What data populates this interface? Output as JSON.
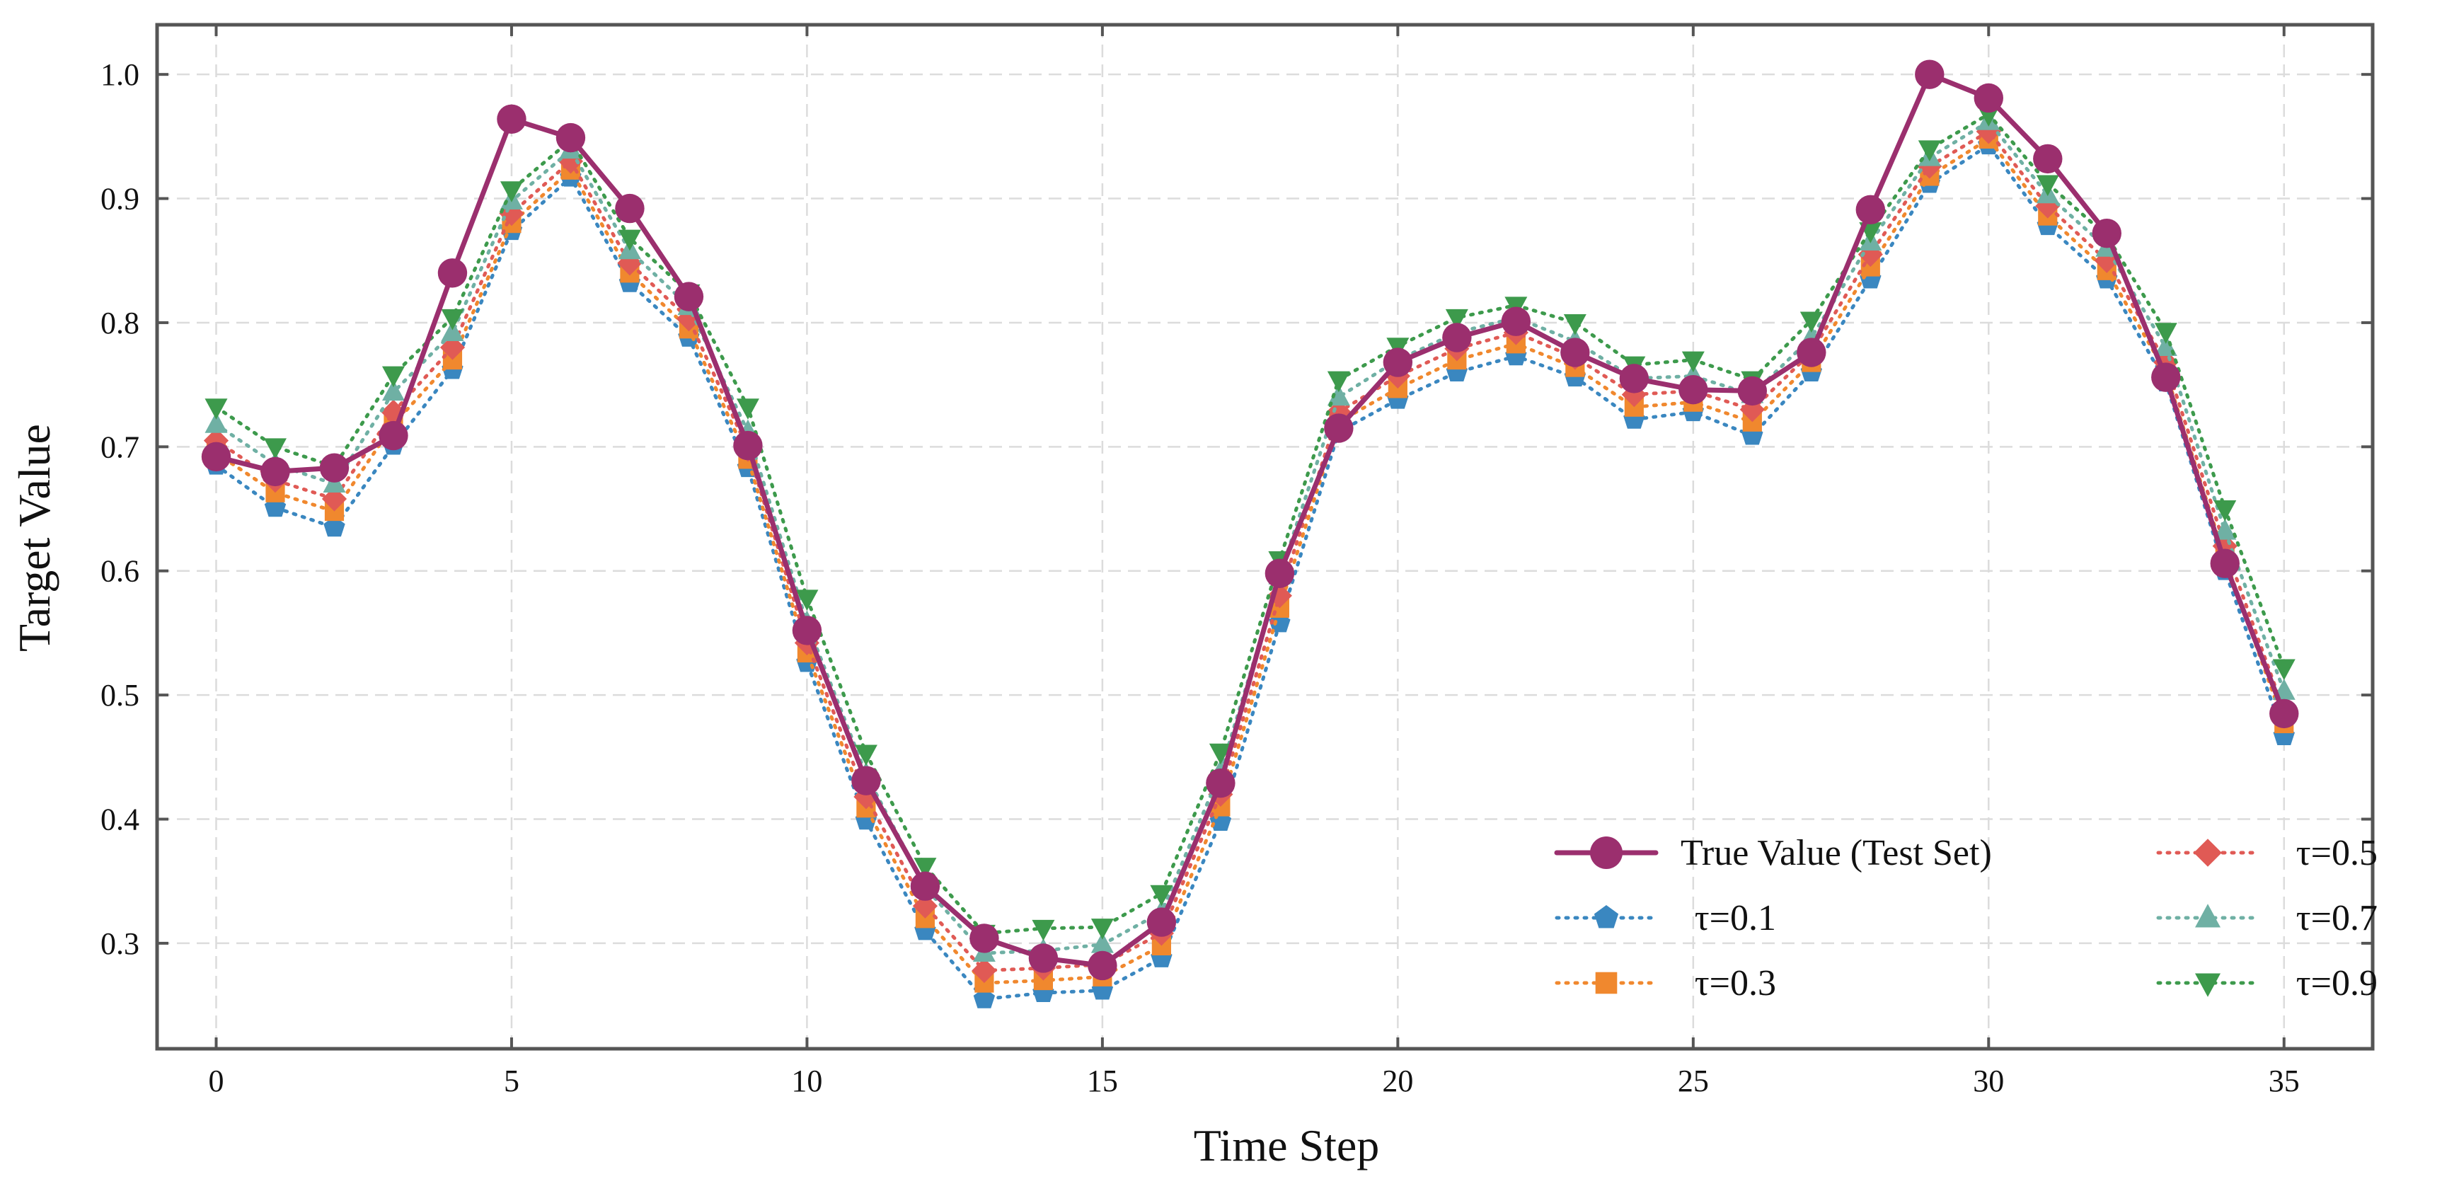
{
  "chart_data": {
    "type": "line",
    "title": "",
    "xlabel": "Time Step",
    "ylabel": "Target Value",
    "xlim": [
      -1,
      36.5
    ],
    "ylim": [
      0.215,
      1.04
    ],
    "xticks": [
      0,
      5,
      10,
      15,
      20,
      25,
      30,
      35
    ],
    "xtick_labels": [
      "0",
      "5",
      "10",
      "15",
      "20",
      "25",
      "30",
      "35"
    ],
    "yticks": [
      0.3,
      0.4,
      0.5,
      0.6,
      0.7,
      0.8,
      0.9,
      1.0
    ],
    "ytick_labels": [
      "0.3",
      "0.4",
      "0.5",
      "0.6",
      "0.7",
      "0.8",
      "0.9",
      "1.0"
    ],
    "grid": true,
    "legend_position": "bottom-right",
    "x": [
      0,
      1,
      2,
      3,
      4,
      5,
      6,
      7,
      8,
      9,
      10,
      11,
      12,
      13,
      14,
      15,
      16,
      17,
      18,
      19,
      20,
      21,
      22,
      23,
      24,
      25,
      26,
      27,
      28,
      29,
      30,
      31,
      32,
      33,
      34,
      35
    ],
    "series": [
      {
        "name": "True Value (Test Set)",
        "color": "#9b2f6e",
        "style": "solid",
        "marker": "circle",
        "values": [
          0.692,
          0.68,
          0.683,
          0.709,
          0.84,
          0.964,
          0.949,
          0.892,
          0.821,
          0.701,
          0.552,
          0.431,
          0.346,
          0.304,
          0.288,
          0.282,
          0.317,
          0.429,
          0.598,
          0.715,
          0.768,
          0.788,
          0.801,
          0.776,
          0.755,
          0.746,
          0.745,
          0.776,
          0.891,
          1.0,
          0.981,
          0.932,
          0.872,
          0.756,
          0.606,
          0.485
        ]
      },
      {
        "name": "τ=0.1",
        "color": "#3a87c0",
        "style": "dotted",
        "marker": "pentagon",
        "values": [
          0.685,
          0.651,
          0.635,
          0.701,
          0.762,
          0.874,
          0.917,
          0.832,
          0.788,
          0.683,
          0.526,
          0.399,
          0.31,
          0.255,
          0.26,
          0.262,
          0.288,
          0.398,
          0.558,
          0.712,
          0.738,
          0.76,
          0.773,
          0.756,
          0.722,
          0.728,
          0.709,
          0.76,
          0.835,
          0.912,
          0.943,
          0.878,
          0.835,
          0.752,
          0.6,
          0.467
        ]
      },
      {
        "name": "τ=0.3",
        "color": "#f0882e",
        "style": "dotted",
        "marker": "square",
        "values": [
          0.695,
          0.663,
          0.648,
          0.718,
          0.77,
          0.88,
          0.923,
          0.84,
          0.795,
          0.69,
          0.534,
          0.409,
          0.32,
          0.268,
          0.27,
          0.273,
          0.298,
          0.41,
          0.57,
          0.72,
          0.747,
          0.77,
          0.783,
          0.764,
          0.732,
          0.736,
          0.72,
          0.768,
          0.845,
          0.918,
          0.948,
          0.886,
          0.842,
          0.76,
          0.61,
          0.477
        ]
      },
      {
        "name": "τ=0.5",
        "color": "#e05a55",
        "style": "dotted",
        "marker": "diamond",
        "values": [
          0.705,
          0.673,
          0.658,
          0.728,
          0.78,
          0.888,
          0.93,
          0.848,
          0.803,
          0.698,
          0.542,
          0.418,
          0.33,
          0.278,
          0.28,
          0.283,
          0.308,
          0.42,
          0.58,
          0.728,
          0.757,
          0.779,
          0.792,
          0.772,
          0.742,
          0.745,
          0.73,
          0.776,
          0.855,
          0.926,
          0.954,
          0.894,
          0.85,
          0.768,
          0.62,
          0.487
        ]
      },
      {
        "name": "τ=0.7",
        "color": "#6fb0a4",
        "style": "dotted",
        "marker": "triangle-up",
        "values": [
          0.718,
          0.686,
          0.67,
          0.744,
          0.792,
          0.898,
          0.939,
          0.858,
          0.813,
          0.712,
          0.558,
          0.436,
          0.345,
          0.292,
          0.294,
          0.299,
          0.325,
          0.438,
          0.596,
          0.74,
          0.77,
          0.792,
          0.804,
          0.785,
          0.755,
          0.757,
          0.742,
          0.788,
          0.865,
          0.933,
          0.962,
          0.903,
          0.86,
          0.78,
          0.632,
          0.503
        ]
      },
      {
        "name": "τ=0.9",
        "color": "#3d9a4c",
        "style": "dotted",
        "marker": "triangle-down",
        "values": [
          0.732,
          0.7,
          0.684,
          0.758,
          0.804,
          0.907,
          0.947,
          0.868,
          0.824,
          0.732,
          0.578,
          0.453,
          0.362,
          0.308,
          0.312,
          0.313,
          0.34,
          0.454,
          0.609,
          0.754,
          0.781,
          0.804,
          0.814,
          0.8,
          0.766,
          0.77,
          0.754,
          0.802,
          0.874,
          0.94,
          0.968,
          0.912,
          0.87,
          0.793,
          0.65,
          0.522
        ]
      }
    ]
  }
}
